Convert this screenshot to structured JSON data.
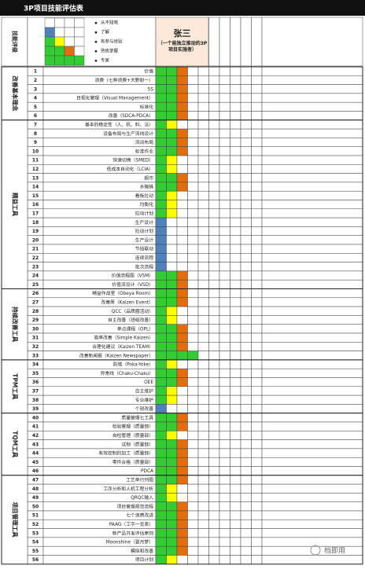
{
  "title": "3P项目技能评估表",
  "legend": {
    "heading": "技能评级",
    "levels": [
      "从不知晓",
      "了解",
      "有参与经验",
      "熟练掌握",
      "专家"
    ]
  },
  "assessee": {
    "name": "张三",
    "description": "（一个能独立推动的3P项目实施者）"
  },
  "groups": [
    {
      "name": "改善基本理念",
      "items": [
        {
          "no": 1,
          "skill": "价值",
          "level": 3
        },
        {
          "no": 2,
          "skill": "浪费（七种浪费+大野耐一）",
          "level": 3
        },
        {
          "no": 3,
          "skill": "5S",
          "level": 3
        },
        {
          "no": 4,
          "skill": "目视化管理（Visual Management）",
          "level": 3
        },
        {
          "no": 5,
          "skill": "标准化",
          "level": 3
        },
        {
          "no": 6,
          "skill": "改善（SDCA-PDCA）",
          "level": 3
        }
      ]
    },
    {
      "name": "精益工具",
      "items": [
        {
          "no": 7,
          "skill": "基本的稳定性（人、机、料、法）",
          "level": 2
        },
        {
          "no": 8,
          "skill": "设备布局与生产流线设计",
          "level": 3
        },
        {
          "no": 9,
          "skill": "流动布局",
          "level": 3
        },
        {
          "no": 10,
          "skill": "标准作业",
          "level": 3
        },
        {
          "no": 11,
          "skill": "快速切换（SMED）",
          "level": 2
        },
        {
          "no": 12,
          "skill": "低成本自动化（LCIA）",
          "level": 2
        },
        {
          "no": 13,
          "skill": "超市",
          "level": 3
        },
        {
          "no": 14,
          "skill": "水蜘蛛",
          "level": 3
        },
        {
          "no": 15,
          "skill": "看板拉动",
          "level": 2
        },
        {
          "no": 16,
          "skill": "均衡化",
          "level": 2
        },
        {
          "no": 17,
          "skill": "拉动计划",
          "level": 2
        },
        {
          "no": 18,
          "skill": "生产设计",
          "level": 1
        },
        {
          "no": 19,
          "skill": "拉动计划",
          "level": 1
        },
        {
          "no": 20,
          "skill": "生产设计",
          "level": 1
        },
        {
          "no": 21,
          "skill": "节拍联动",
          "level": 1
        },
        {
          "no": 22,
          "skill": "连续流程",
          "level": 1
        },
        {
          "no": 23,
          "skill": "批次流程",
          "level": 1
        },
        {
          "no": 24,
          "skill": "价值流程图（VSM）",
          "level": 3
        },
        {
          "no": 25,
          "skill": "价值流设计（VSD）",
          "level": 3
        }
      ]
    },
    {
      "name": "持续改善工具",
      "items": [
        {
          "no": 26,
          "skill": "精益作战室（Obeya Room）",
          "level": 3
        },
        {
          "no": 27,
          "skill": "改善周（Kaizen Event）",
          "level": 3
        },
        {
          "no": 28,
          "skill": "QCC（品质圈活动）",
          "level": 2
        },
        {
          "no": 29,
          "skill": "自主改善（班组改善）",
          "level": 2
        },
        {
          "no": 30,
          "skill": "单点课程（OPL）",
          "level": 3
        },
        {
          "no": 31,
          "skill": "简单改善（Simple Kaizen）",
          "level": 3
        },
        {
          "no": 32,
          "skill": "合理化建议（Kaizen TEAM）",
          "level": 3
        },
        {
          "no": 33,
          "skill": "改善新闻报（Kaizen Newspaper）",
          "level": 4
        }
      ]
    },
    {
      "name": "TPM工具",
      "items": [
        {
          "no": 34,
          "skill": "防错（Poka-Yoke）",
          "level": 2
        },
        {
          "no": 35,
          "skill": "异常线（Chaku-Chaku）",
          "level": 3
        },
        {
          "no": 36,
          "skill": "OEE",
          "level": 3
        },
        {
          "no": 37,
          "skill": "自主维护",
          "level": 2
        },
        {
          "no": 38,
          "skill": "专业维护",
          "level": 2
        },
        {
          "no": 39,
          "skill": "个别改善",
          "level": 1
        }
      ]
    },
    {
      "name": "TQM工具",
      "items": [
        {
          "no": 40,
          "skill": "质量管理七工具",
          "level": 3
        },
        {
          "no": 41,
          "skill": "检验管理（质量部）",
          "level": 3
        },
        {
          "no": 42,
          "skill": "自检管理（质量部）",
          "level": 2
        },
        {
          "no": 43,
          "skill": "试制（质量部）",
          "level": 3
        },
        {
          "no": 44,
          "skill": "有效控制的加工（质量部）",
          "level": 3
        },
        {
          "no": 45,
          "skill": "零件合格（质量部）",
          "level": 3
        },
        {
          "no": 46,
          "skill": "PDCA",
          "level": 3
        }
      ]
    },
    {
      "name": "项目管理工具",
      "items": [
        {
          "no": 47,
          "skill": "工艺单行列图",
          "level": 3
        },
        {
          "no": 48,
          "skill": "工序分析和人机工程分析",
          "level": 2
        },
        {
          "no": 49,
          "skill": "QRQC输入",
          "level": 2
        },
        {
          "no": 50,
          "skill": "项目管理规范流程",
          "level": 3
        },
        {
          "no": 51,
          "skill": "七个浪费改进",
          "level": 3
        },
        {
          "no": 52,
          "skill": "PAAG（工字一览表）",
          "level": 3
        },
        {
          "no": 53,
          "skill": "新产品开发评估原则",
          "level": 3
        },
        {
          "no": 54,
          "skill": "Moonshine（登月梦）",
          "level": 3
        },
        {
          "no": 55,
          "skill": "模拟和改善",
          "level": 3
        },
        {
          "no": 56,
          "skill": "项目计划",
          "level": 2
        }
      ]
    }
  ],
  "watermark": "档即用"
}
